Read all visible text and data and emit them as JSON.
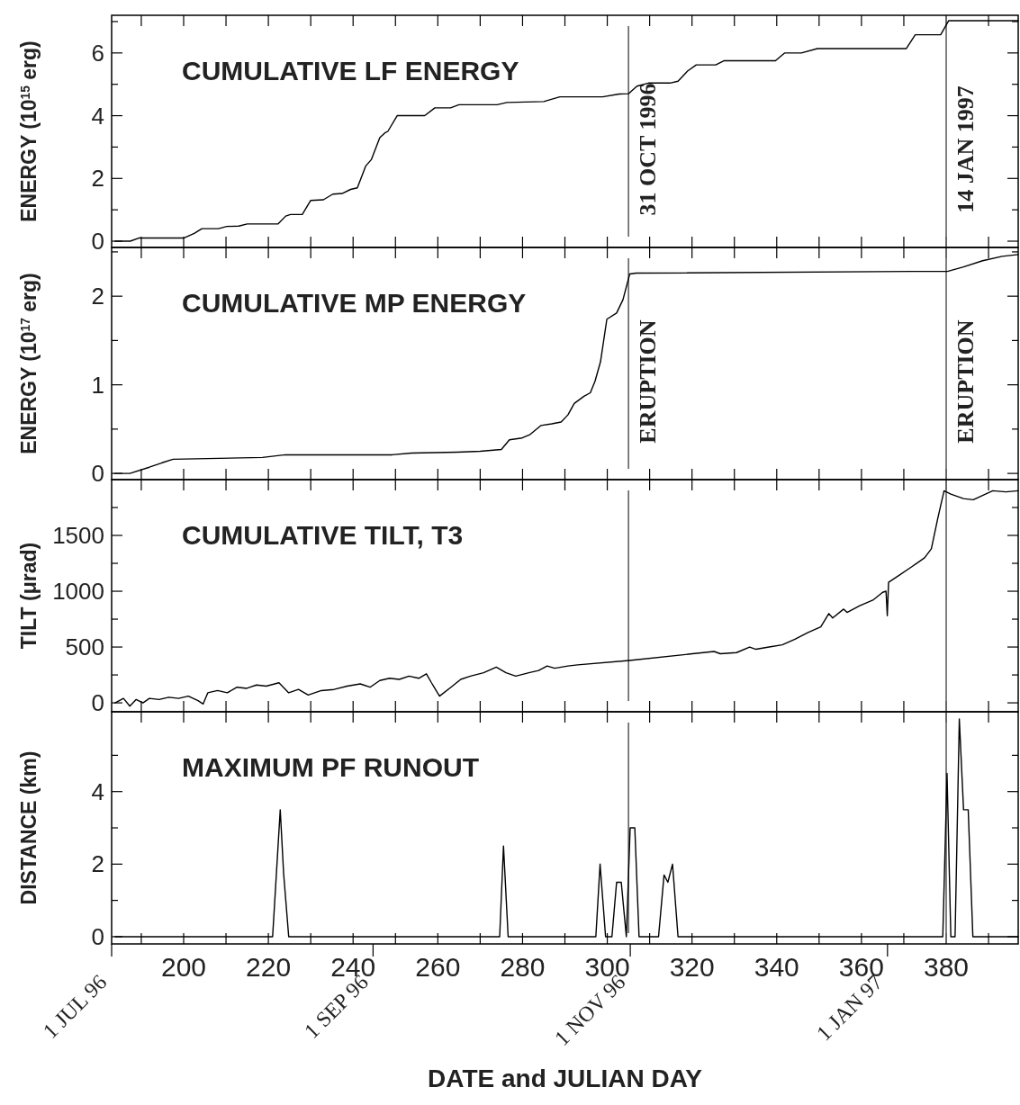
{
  "chart_data": [
    {
      "type": "line",
      "title": "CUMULATIVE LF ENERGY",
      "ylabel": "ENERGY (10$^{15}$ erg)",
      "xlim": [
        183,
        397
      ],
      "ylim": [
        -0.2,
        7.2
      ],
      "tick_labels": "y",
      "xticks": [
        {
          "value": 190,
          "label": null
        },
        {
          "value": 200,
          "label": null
        },
        {
          "value": 210,
          "label": null
        },
        {
          "value": 220,
          "label": null
        },
        {
          "value": 230,
          "label": null
        },
        {
          "value": 240,
          "label": null
        },
        {
          "value": 250,
          "label": null
        },
        {
          "value": 260,
          "label": null
        },
        {
          "value": 270,
          "label": null
        },
        {
          "value": 280,
          "label": null
        },
        {
          "value": 290,
          "label": null
        },
        {
          "value": 300,
          "label": null
        },
        {
          "value": 310,
          "label": null
        },
        {
          "value": 320,
          "label": null
        },
        {
          "value": 330,
          "label": null
        },
        {
          "value": 340,
          "label": null
        },
        {
          "value": 350,
          "label": null
        },
        {
          "value": 360,
          "label": null
        },
        {
          "value": 370,
          "label": null
        },
        {
          "value": 380,
          "label": null
        },
        {
          "value": 390,
          "label": null
        }
      ],
      "yticks": [
        0,
        {
          "value": 1,
          "label": null
        },
        2,
        {
          "value": 3,
          "label": null
        },
        4,
        {
          "value": 5,
          "label": null
        },
        6,
        {
          "value": 7,
          "label": null
        }
      ],
      "ref_lines": [
        {
          "axis": "x",
          "value": 305,
          "label": "31 OCT 1996"
        },
        {
          "axis": "x",
          "value": 380,
          "label": "14 JAN 1997"
        }
      ],
      "series": [
        {
          "color": "#000000",
          "x": [
            183.8,
            187.4,
            189.4,
            200,
            202.5,
            204.3,
            208.2,
            210.2,
            213,
            215,
            222.3,
            224.1,
            225.2,
            228,
            230,
            233,
            235.2,
            237.4,
            239.4,
            241,
            243,
            244.3,
            246.3,
            247.5,
            248.2,
            250.4,
            256.9,
            259.3,
            263,
            265,
            274,
            276.3,
            285,
            288.8,
            298.9,
            302.8,
            305,
            307,
            309.7,
            314.8,
            316.7,
            319,
            321,
            325.6,
            327.5,
            339.7,
            341.9,
            345.8,
            349.6,
            370.6,
            372.7,
            378.7,
            380.6,
            397
          ],
          "values": [
            0,
            0,
            0.1,
            0.1,
            0.25,
            0.4,
            0.4,
            0.47,
            0.48,
            0.55,
            0.55,
            0.8,
            0.85,
            0.85,
            1.3,
            1.32,
            1.5,
            1.52,
            1.65,
            1.7,
            2.4,
            2.6,
            3.3,
            3.45,
            3.5,
            4,
            4,
            4.25,
            4.25,
            4.35,
            4.35,
            4.42,
            4.45,
            4.6,
            4.6,
            4.69,
            4.7,
            4.94,
            5.04,
            5.04,
            5.1,
            5.43,
            5.62,
            5.62,
            5.75,
            5.75,
            6,
            6,
            6.14,
            6.14,
            6.58,
            6.58,
            7.03,
            7.03
          ]
        }
      ]
    },
    {
      "type": "line",
      "title": "CUMULATIVE MP ENERGY",
      "ylabel": "ENERGY (10$^{17}$ erg)",
      "xlim": [
        183,
        397
      ],
      "ylim": [
        -0.07,
        2.55
      ],
      "tick_labels": "y",
      "xticks": [
        {
          "value": 190,
          "label": null
        },
        {
          "value": 200,
          "label": null
        },
        {
          "value": 210,
          "label": null
        },
        {
          "value": 220,
          "label": null
        },
        {
          "value": 230,
          "label": null
        },
        {
          "value": 240,
          "label": null
        },
        {
          "value": 250,
          "label": null
        },
        {
          "value": 260,
          "label": null
        },
        {
          "value": 270,
          "label": null
        },
        {
          "value": 280,
          "label": null
        },
        {
          "value": 290,
          "label": null
        },
        {
          "value": 300,
          "label": null
        },
        {
          "value": 310,
          "label": null
        },
        {
          "value": 320,
          "label": null
        },
        {
          "value": 330,
          "label": null
        },
        {
          "value": 340,
          "label": null
        },
        {
          "value": 350,
          "label": null
        },
        {
          "value": 360,
          "label": null
        },
        {
          "value": 370,
          "label": null
        },
        {
          "value": 380,
          "label": null
        },
        {
          "value": 390,
          "label": null
        }
      ],
      "yticks": [
        0,
        {
          "value": 0.5,
          "label": null
        },
        1,
        {
          "value": 1.5,
          "label": null
        },
        2,
        {
          "value": 2.5,
          "label": null
        }
      ],
      "ref_lines": [
        {
          "axis": "x",
          "value": 305,
          "label": "ERUPTION"
        },
        {
          "axis": "x",
          "value": 380,
          "label": "ERUPTION"
        }
      ],
      "series": [
        {
          "color": "#000000",
          "x": [
            183.7,
            187.3,
            191.9,
            194.9,
            197.5,
            218.6,
            224,
            249.2,
            253.8,
            264.6,
            270,
            275,
            276.9,
            279.9,
            281.8,
            284.3,
            286.9,
            289.1,
            290.7,
            292.2,
            294.5,
            296,
            297.1,
            298.4,
            299.9,
            302.2,
            303.7,
            305.3,
            306.8,
            371.8,
            380.3,
            384.1,
            388.6,
            393.2,
            397
          ],
          "values": [
            0,
            0,
            0.07,
            0.12,
            0.16,
            0.18,
            0.21,
            0.21,
            0.23,
            0.24,
            0.25,
            0.27,
            0.38,
            0.4,
            0.44,
            0.54,
            0.56,
            0.58,
            0.66,
            0.79,
            0.87,
            0.91,
            1.04,
            1.26,
            1.74,
            1.81,
            1.96,
            2.25,
            2.26,
            2.28,
            2.28,
            2.33,
            2.4,
            2.45,
            2.47
          ]
        }
      ]
    },
    {
      "type": "line",
      "title": "CUMULATIVE TILT, T3",
      "ylabel": "TILT (μrad)",
      "xlim": [
        183,
        397
      ],
      "ylim": [
        -80,
        2000
      ],
      "tick_labels": "y",
      "xticks": [
        {
          "value": 190,
          "label": null
        },
        {
          "value": 200,
          "label": null
        },
        {
          "value": 210,
          "label": null
        },
        {
          "value": 220,
          "label": null
        },
        {
          "value": 230,
          "label": null
        },
        {
          "value": 240,
          "label": null
        },
        {
          "value": 250,
          "label": null
        },
        {
          "value": 260,
          "label": null
        },
        {
          "value": 270,
          "label": null
        },
        {
          "value": 280,
          "label": null
        },
        {
          "value": 290,
          "label": null
        },
        {
          "value": 300,
          "label": null
        },
        {
          "value": 310,
          "label": null
        },
        {
          "value": 320,
          "label": null
        },
        {
          "value": 330,
          "label": null
        },
        {
          "value": 340,
          "label": null
        },
        {
          "value": 350,
          "label": null
        },
        {
          "value": 360,
          "label": null
        },
        {
          "value": 370,
          "label": null
        },
        {
          "value": 380,
          "label": null
        },
        {
          "value": 390,
          "label": null
        }
      ],
      "yticks": [
        0,
        {
          "value": 250,
          "label": null
        },
        500,
        {
          "value": 750,
          "label": null
        },
        1000,
        {
          "value": 1250,
          "label": null
        },
        1500,
        {
          "value": 1750,
          "label": null
        }
      ],
      "ref_lines": [
        {
          "axis": "x",
          "value": 305
        },
        {
          "axis": "x",
          "value": 380
        }
      ],
      "series": [
        {
          "color": "#000000",
          "x": [
            183.8,
            185.8,
            187.3,
            188.8,
            190.4,
            191.9,
            194.2,
            196.5,
            198.8,
            201.1,
            203.4,
            204.6,
            205.7,
            208,
            210.3,
            212.6,
            214.9,
            217.2,
            219.5,
            222.5,
            224.8,
            227.1,
            229.4,
            232.5,
            235.5,
            238.6,
            241.7,
            244,
            246.3,
            248.6,
            250.9,
            253.2,
            255.5,
            257.3,
            258.5,
            260.4,
            263.1,
            265.4,
            267.7,
            270.8,
            273.8,
            276.1,
            278.4,
            281.5,
            283.8,
            285.8,
            287.6,
            290.7,
            293,
            305.2,
            325.2,
            326.7,
            330.5,
            333.6,
            335.1,
            338.2,
            341.3,
            344.3,
            347.4,
            350.4,
            352.3,
            353.2,
            355.8,
            356.6,
            359.6,
            362.7,
            365,
            365.8,
            366.1,
            366.4,
            368.8,
            371.9,
            374.9,
            376.5,
            378,
            379.5,
            381.1,
            384.1,
            386.4,
            388.7,
            391,
            394.1,
            397
          ],
          "values": [
            0,
            40,
            -30,
            30,
            0,
            40,
            30,
            50,
            40,
            60,
            20,
            -10,
            90,
            110,
            90,
            140,
            130,
            160,
            150,
            180,
            90,
            120,
            70,
            110,
            120,
            150,
            170,
            140,
            200,
            220,
            210,
            240,
            220,
            260,
            180,
            60,
            140,
            210,
            240,
            270,
            320,
            270,
            240,
            270,
            290,
            330,
            310,
            330,
            340,
            380,
            460,
            440,
            450,
            500,
            480,
            500,
            520,
            570,
            630,
            680,
            800,
            760,
            840,
            810,
            870,
            920,
            990,
            1000,
            780,
            1080,
            1140,
            1220,
            1300,
            1380,
            1650,
            1900,
            1870,
            1830,
            1820,
            1860,
            1900,
            1890,
            1900
          ]
        }
      ]
    },
    {
      "type": "line",
      "title": "MAXIMUM PF RUNOUT",
      "ylabel": "DISTANCE (km)",
      "xlabel": "DATE and JULIAN DAY",
      "xlim": [
        183,
        397
      ],
      "ylim": [
        -0.2,
        6.2
      ],
      "xticks": [
        {
          "value": 190,
          "label": null
        },
        200,
        {
          "value": 210,
          "label": null
        },
        220,
        {
          "value": 230,
          "label": null
        },
        240,
        {
          "value": 250,
          "label": null
        },
        260,
        {
          "value": 270,
          "label": null
        },
        280,
        {
          "value": 290,
          "label": null
        },
        300,
        {
          "value": 310,
          "label": null
        },
        320,
        {
          "value": 330,
          "label": null
        },
        340,
        {
          "value": 350,
          "label": null
        },
        360,
        {
          "value": 370,
          "label": null
        },
        380,
        {
          "value": 390,
          "label": null
        }
      ],
      "yticks": [
        0,
        {
          "value": 1,
          "label": null
        },
        2,
        {
          "value": 3,
          "label": null
        },
        4,
        {
          "value": 5,
          "label": null
        }
      ],
      "x2lim": [
        "1996-07-01",
        "1997-02-01"
      ],
      "x2ticks": [
        {
          "value": "1996-07-01",
          "label": "1 JUL 96"
        },
        {
          "value": "1996-09-01",
          "label": "1 SEP 96"
        },
        {
          "value": "1996-11-01",
          "label": "1 NOV 96"
        },
        {
          "value": "1997-01-01",
          "label": "1 JAN 97"
        }
      ],
      "ref_lines": [
        {
          "axis": "x",
          "value": 305
        },
        {
          "axis": "x",
          "value": 380
        }
      ],
      "series": [
        {
          "color": "#000000",
          "x": [
            183.8,
            221,
            222.8,
            223.6,
            224.8,
            274.6,
            275.5,
            276.6,
            297.3,
            298.3,
            299.6,
            301.1,
            302.2,
            303.3,
            304.5,
            305.4,
            306.5,
            307.5,
            312.1,
            313.4,
            314.3,
            315.4,
            316.7,
            379.2,
            380.2,
            381.1,
            382.1,
            383.1,
            384.1,
            385.2,
            386.3,
            397
          ],
          "values": [
            0,
            0,
            3.5,
            1.74,
            0,
            0,
            2.5,
            0,
            0,
            2,
            0,
            0,
            1.5,
            1.5,
            0,
            3,
            3,
            0,
            0,
            1.7,
            1.5,
            2,
            0,
            0,
            4.5,
            0,
            0,
            6,
            3.5,
            3.5,
            0,
            0
          ]
        }
      ]
    }
  ]
}
